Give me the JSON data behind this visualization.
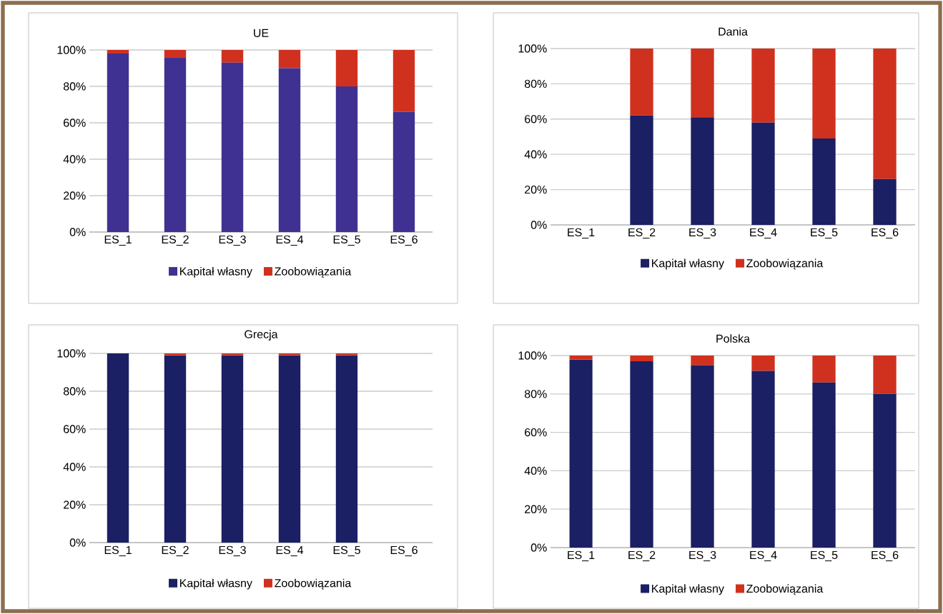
{
  "chart_data": [
    {
      "type": "bar",
      "stacked": true,
      "title": "UE",
      "categories": [
        "ES_1",
        "ES_2",
        "ES_3",
        "ES_4",
        "ES_5",
        "ES_6"
      ],
      "ylim": [
        0,
        100
      ],
      "yticks": [
        {
          "value": 0,
          "label": "0%"
        },
        {
          "value": 20,
          "label": "20%"
        },
        {
          "value": 40,
          "label": "40%"
        },
        {
          "value": 60,
          "label": "60%"
        },
        {
          "value": 80,
          "label": "80%"
        },
        {
          "value": 100,
          "label": "100%"
        }
      ],
      "grid": "y",
      "legend": "bottom",
      "series": [
        {
          "name": "Kapitał własny",
          "color": "#3f3191",
          "values": [
            98,
            96,
            93,
            90,
            80,
            66
          ]
        },
        {
          "name": "Zoobowiązania",
          "color": "#d0311f",
          "values": [
            2,
            4,
            7,
            10,
            20,
            34
          ]
        }
      ]
    },
    {
      "type": "bar",
      "stacked": true,
      "title": "Dania",
      "categories": [
        "ES_1",
        "ES_2",
        "ES_3",
        "ES_4",
        "ES_5",
        "ES_6"
      ],
      "ylim": [
        0,
        100
      ],
      "yticks": [
        {
          "value": 0,
          "label": "0%"
        },
        {
          "value": 20,
          "label": "20%"
        },
        {
          "value": 40,
          "label": "40%"
        },
        {
          "value": 60,
          "label": "60%"
        },
        {
          "value": 80,
          "label": "80%"
        },
        {
          "value": 100,
          "label": "100%"
        }
      ],
      "grid": "y",
      "legend": "bottom",
      "series": [
        {
          "name": "Kapitał własny",
          "color": "#1b1f63",
          "values": [
            null,
            62,
            61,
            58,
            49,
            26
          ]
        },
        {
          "name": "Zoobowiązania",
          "color": "#d0311f",
          "values": [
            null,
            38,
            39,
            42,
            51,
            74
          ]
        }
      ]
    },
    {
      "type": "bar",
      "stacked": true,
      "title": "Grecja",
      "categories": [
        "ES_1",
        "ES_2",
        "ES_3",
        "ES_4",
        "ES_5",
        "ES_6"
      ],
      "ylim": [
        0,
        100
      ],
      "yticks": [
        {
          "value": 0,
          "label": "0%"
        },
        {
          "value": 20,
          "label": "20%"
        },
        {
          "value": 40,
          "label": "40%"
        },
        {
          "value": 60,
          "label": "60%"
        },
        {
          "value": 80,
          "label": "80%"
        },
        {
          "value": 100,
          "label": "100%"
        }
      ],
      "grid": "y",
      "legend": "bottom",
      "series": [
        {
          "name": "Kapitał własny",
          "color": "#1b1f63",
          "values": [
            100,
            99,
            99,
            99,
            99,
            null
          ]
        },
        {
          "name": "Zoobowiązania",
          "color": "#d0311f",
          "values": [
            0,
            1,
            1,
            1,
            1,
            null
          ]
        }
      ]
    },
    {
      "type": "bar",
      "stacked": true,
      "title": "Polska",
      "categories": [
        "ES_1",
        "ES_2",
        "ES_3",
        "ES_4",
        "ES_5",
        "ES_6"
      ],
      "ylim": [
        0,
        100
      ],
      "yticks": [
        {
          "value": 0,
          "label": "0%"
        },
        {
          "value": 20,
          "label": "20%"
        },
        {
          "value": 40,
          "label": "40%"
        },
        {
          "value": 60,
          "label": "60%"
        },
        {
          "value": 80,
          "label": "80%"
        },
        {
          "value": 100,
          "label": "100%"
        }
      ],
      "grid": "y",
      "legend": "bottom",
      "series": [
        {
          "name": "Kapitał własny",
          "color": "#1b1f63",
          "values": [
            98,
            97,
            95,
            92,
            86,
            80
          ]
        },
        {
          "name": "Zoobowiązania",
          "color": "#d0311f",
          "values": [
            2,
            3,
            5,
            8,
            14,
            20
          ]
        }
      ]
    }
  ]
}
